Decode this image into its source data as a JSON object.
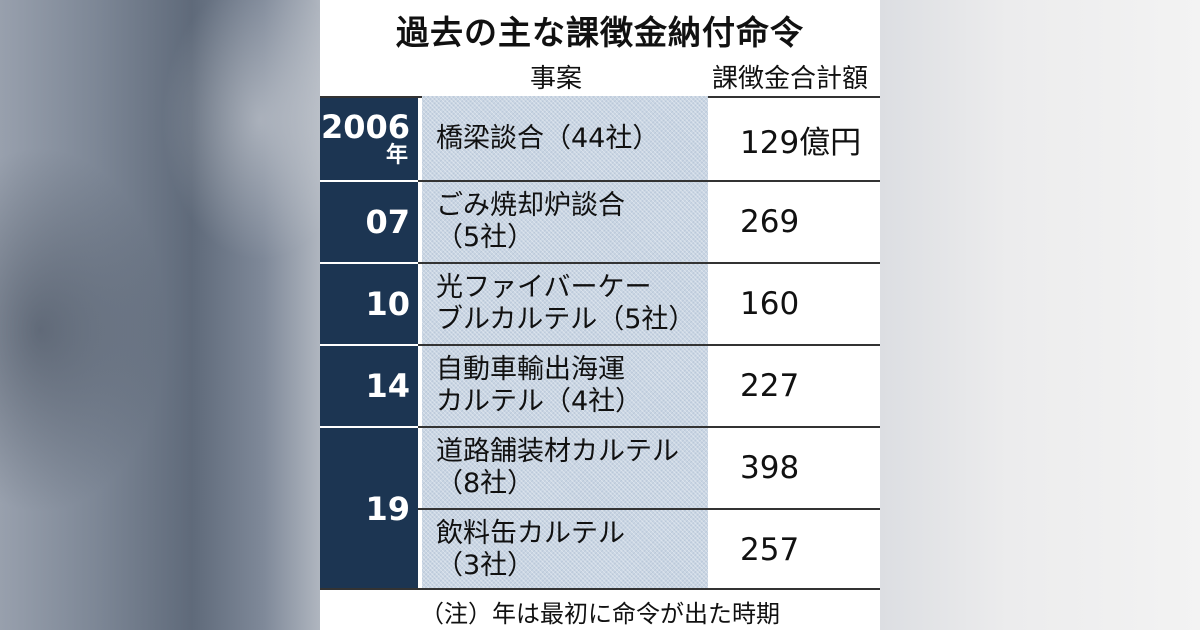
{
  "title": "過去の主な課徴金納付命令",
  "headers": {
    "case": "事案",
    "amount": "課徴金合計額"
  },
  "rows": [
    {
      "year": "2006",
      "year_suffix": "年",
      "case_line1": "橋梁談合（44社）",
      "case_line2": "",
      "amount": "129億円"
    },
    {
      "year": "07",
      "year_suffix": "",
      "case_line1": "ごみ焼却炉談合",
      "case_line2": "（5社）",
      "amount": "269"
    },
    {
      "year": "10",
      "year_suffix": "",
      "case_line1": "光ファイバーケー",
      "case_line2": "ブルカルテル（5社）",
      "amount": "160"
    },
    {
      "year": "14",
      "year_suffix": "",
      "case_line1": "自動車輸出海運",
      "case_line2": "カルテル（4社）",
      "amount": "227"
    },
    {
      "year": "19",
      "year_suffix": "",
      "case_line1": "道路舗装材カルテル",
      "case_line2": "（8社）",
      "amount": "398"
    },
    {
      "year": "",
      "year_suffix": "",
      "case_line1": "飲料缶カルテル",
      "case_line2": "（3社）",
      "amount": "257"
    }
  ],
  "note": "（注）年は最初に命令が出た時期",
  "colors": {
    "year_bg": "#1c3552",
    "case_bg": "#c9d5e3"
  }
}
